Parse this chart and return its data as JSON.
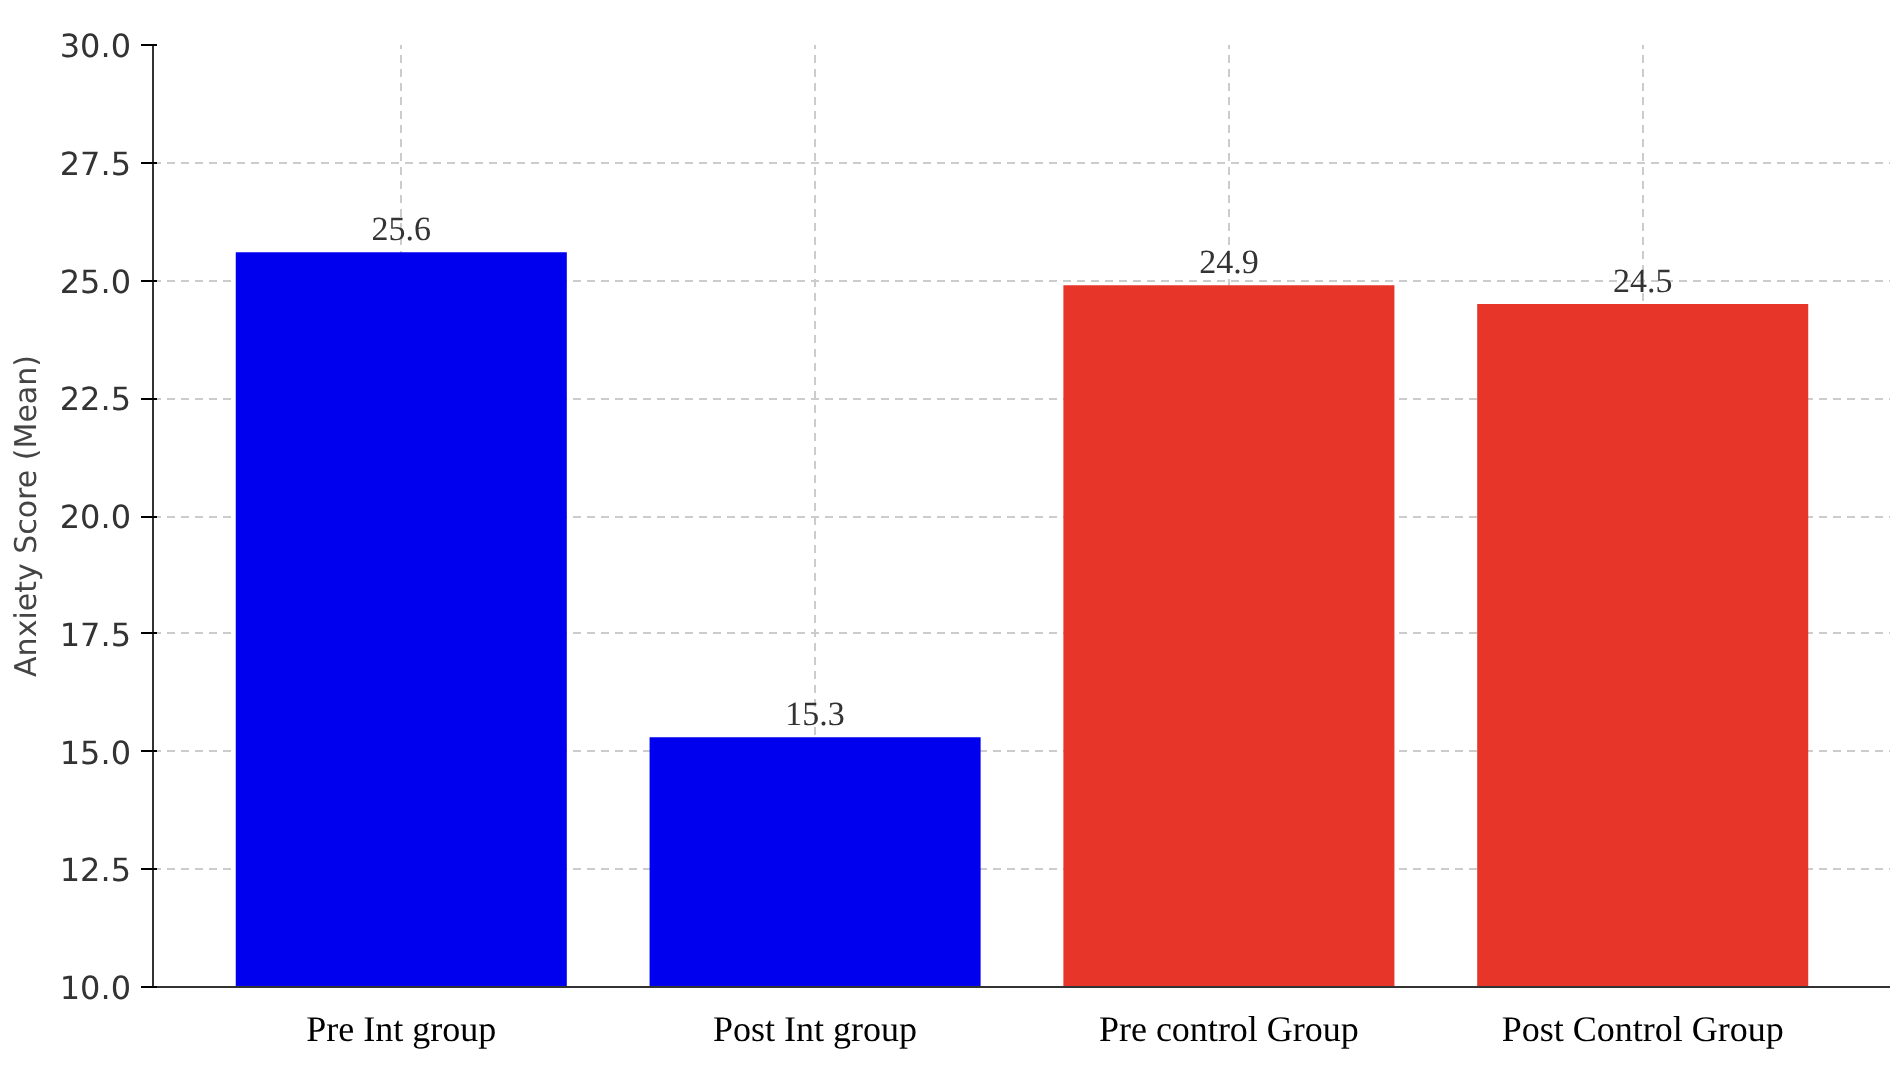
{
  "chart_data": {
    "type": "bar",
    "ylabel": "Anxiety Score (Mean)",
    "categories": [
      "Pre Int group",
      "Post Int group",
      "Pre control Group",
      "Post Control Group"
    ],
    "values": [
      25.6,
      15.3,
      24.9,
      24.5
    ],
    "colors": [
      "#0000ee",
      "#0000ee",
      "#e8352a",
      "#e8352a"
    ],
    "ylim": [
      10,
      30
    ],
    "yticks": [
      {
        "value": 10,
        "label": "10.0"
      },
      {
        "value": 12.5,
        "label": "12.5"
      },
      {
        "value": 15,
        "label": "15.0"
      },
      {
        "value": 17.5,
        "label": "17.5"
      },
      {
        "value": 20,
        "label": "20.0"
      },
      {
        "value": 22.5,
        "label": "22.5"
      },
      {
        "value": 25,
        "label": "25.0"
      },
      {
        "value": 27.5,
        "label": "27.5"
      },
      {
        "value": 30,
        "label": "30.0"
      }
    ],
    "data_labels": true,
    "grid": true
  }
}
